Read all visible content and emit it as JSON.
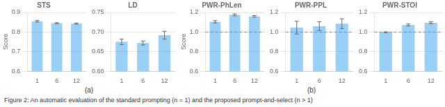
{
  "chart_data": [
    {
      "type": "bar",
      "title": "STS",
      "categories": [
        "1",
        "6",
        "12"
      ],
      "values": [
        0.855,
        0.845,
        0.843
      ],
      "errors": [
        0.004,
        0.003,
        0.003
      ],
      "ylim": [
        0.6,
        0.9
      ],
      "yticks": [
        0.6,
        0.7,
        0.8,
        0.9
      ],
      "ylabel": "Score",
      "grid": true
    },
    {
      "type": "bar",
      "title": "LD",
      "categories": [
        "1",
        "6",
        "12"
      ],
      "values": [
        0.675,
        0.672,
        0.692
      ],
      "errors": [
        0.007,
        0.005,
        0.01
      ],
      "ylim": [
        0.6,
        0.75
      ],
      "yticks": [
        {
          "value": 0.6,
          "label": "0.60"
        },
        0.65,
        {
          "value": 0.7,
          "label": "0.70"
        },
        0.75
      ],
      "grid": true
    },
    {
      "type": "bar",
      "title": "PWR-PhLen",
      "categories": [
        "1",
        "6",
        "12"
      ],
      "values": [
        1.105,
        1.175,
        1.16
      ],
      "errors": [
        0.012,
        0.01,
        0.008
      ],
      "ylim": [
        0.6,
        1.2
      ],
      "yticks": [
        0.6,
        0.8,
        {
          "value": 1.0,
          "label": "1.0"
        },
        1.2
      ],
      "ylabel": "Score",
      "reference_line": 1.0,
      "grid": true
    },
    {
      "type": "bar",
      "title": "PWR-PPL",
      "categories": [
        "1",
        "6",
        "12"
      ],
      "values": [
        1.045,
        1.06,
        1.085
      ],
      "errors": [
        0.065,
        0.045,
        0.05
      ],
      "ylim": [
        0.6,
        1.2
      ],
      "yticks": [
        0.6,
        0.8,
        {
          "value": 1.0,
          "label": "1.0"
        },
        1.2
      ],
      "reference_line": 1.0,
      "grid": true
    },
    {
      "type": "bar",
      "title": "PWR-STOI",
      "categories": [
        "1",
        "6",
        "12"
      ],
      "values": [
        0.998,
        1.072,
        1.095
      ],
      "errors": [
        0.004,
        0.01,
        0.01
      ],
      "ylim": [
        0.6,
        1.2
      ],
      "yticks": [
        0.6,
        0.8,
        {
          "value": 1.0,
          "label": "1.0"
        },
        1.2
      ],
      "reference_line": 1.0,
      "grid": true
    }
  ],
  "annotations": [
    "(a)",
    "(b)"
  ],
  "caption": "Figure 2: An automatic evaluation of the standard prompting (n = 1) and the proposed prompt-and-select (n > 1)"
}
